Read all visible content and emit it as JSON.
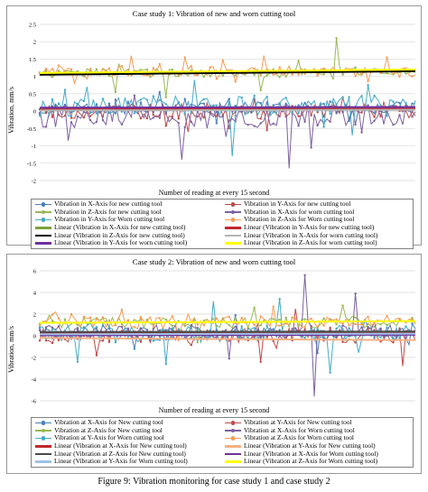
{
  "caption": "Figure 9: Vibration monitoring for case study 1 and case study 2",
  "chart_data": [
    {
      "type": "line",
      "title": "Case study 1: Vibration of new and worn cutting tool",
      "xlabel": "Number of reading at every 15 second",
      "ylabel": "Vibration, mm/s",
      "ylim": [
        -2,
        2.5
      ],
      "yticks": [
        "2.5",
        "2",
        "1.5",
        "1",
        "0.5",
        "0",
        "-0.5",
        "-1",
        "-1.5",
        "-2"
      ],
      "grid": "horizontal",
      "legend_position": "bottom",
      "n_points": 120,
      "series": [
        {
          "name": "Vibration in X-Axis for new cutting tool",
          "color": "#4a7ebb",
          "kind": "data",
          "center": 0.1,
          "spread": 0.18,
          "spike_up": [
            [
              38,
              0.55
            ]
          ],
          "spike_down": [
            [
              56,
              -0.35
            ]
          ]
        },
        {
          "name": "Vibration in Y-Axis for new cutting tool",
          "color": "#be4b48",
          "kind": "data",
          "center": 0.0,
          "spread": 0.22,
          "spike_up": [
            [
              96,
              0.4
            ]
          ],
          "spike_down": [
            [
              47,
              -0.6
            ],
            [
              72,
              -0.55
            ]
          ]
        },
        {
          "name": "Vibration in Z-Axis for new cutting tool",
          "color": "#98b954",
          "kind": "data",
          "center": 1.1,
          "spread": 0.12,
          "spike_up": [
            [
              94,
              2.1
            ],
            [
              82,
              1.45
            ]
          ],
          "spike_down": [
            [
              24,
              0.55
            ],
            [
              40,
              0.4
            ],
            [
              70,
              0.6
            ]
          ]
        },
        {
          "name": "Vibration in X-Axis for worn cutting tool",
          "color": "#7d60a0",
          "kind": "data",
          "center": -0.15,
          "spread": 0.35,
          "spike_up": [
            [
              30,
              0.45
            ]
          ],
          "spike_down": [
            [
              9,
              -0.85
            ],
            [
              45,
              -1.4
            ],
            [
              79,
              -1.65
            ],
            [
              86,
              -1.05
            ]
          ]
        },
        {
          "name": "Vibration in Y-Axis for Worn cutting tool",
          "color": "#46aac5",
          "kind": "data",
          "center": 0.15,
          "spread": 0.3,
          "spike_up": [
            [
              15,
              0.7
            ],
            [
              49,
              0.9
            ],
            [
              104,
              0.75
            ]
          ],
          "spike_down": [
            [
              61,
              -1.3
            ],
            [
              99,
              -0.7
            ]
          ]
        },
        {
          "name": "Vibration in Z-Axis for Worn cutting tool",
          "color": "#f59d56",
          "kind": "data",
          "center": 1.15,
          "spread": 0.15,
          "spike_up": [
            [
              29,
              1.6
            ],
            [
              46,
              1.55
            ],
            [
              71,
              1.6
            ],
            [
              110,
              1.55
            ]
          ],
          "spike_down": [
            [
              11,
              0.8
            ],
            [
              62,
              0.85
            ]
          ]
        },
        {
          "name": "Linear (Vibration in X-Axis for new cutting tool)",
          "color": "#7aa23a",
          "kind": "trend",
          "y0": 0.08,
          "y1": 0.1
        },
        {
          "name": "Linear (Vibration in Y-Axis for new cutting tool)",
          "color": "#c0282d",
          "kind": "trend",
          "y0": 0.05,
          "y1": 0.07
        },
        {
          "name": "Linear (Vibration in Z-Axis for new cutting tool)",
          "color": "#000000",
          "kind": "trend",
          "y0": 1.05,
          "y1": 1.15
        },
        {
          "name": "Linear (Vibration in X-Axis for worn cutting tool)",
          "color": "#b5b5b5",
          "kind": "trend",
          "y0": 0.02,
          "y1": 0.04
        },
        {
          "name": "Linear (Vibration in Y-Axis for worn cutting tool)",
          "color": "#7030a0",
          "kind": "trend",
          "y0": 0.1,
          "y1": 0.12
        },
        {
          "name": "Linear (Vibration in Z-Axis for worn cutting tool)",
          "color": "#ffff00",
          "kind": "trend",
          "y0": 1.1,
          "y1": 1.2
        }
      ]
    },
    {
      "type": "line",
      "title": "Case study 2: Vibration of new and worn cutting tool",
      "xlabel": "Number of reading at every 15 second",
      "ylabel": "Vibration, mm/s",
      "ylim": [
        -6,
        6
      ],
      "yticks": [
        "6",
        "4",
        "2",
        "0",
        "-2",
        "-4",
        "-6"
      ],
      "grid": "horizontal",
      "legend_position": "bottom",
      "n_points": 120,
      "series": [
        {
          "name": "Vibration at X-Axis for New cutting tool",
          "color": "#4a7ebb",
          "kind": "data",
          "center": 0.2,
          "spread": 0.6,
          "spike_up": [
            [
              62,
              1.9
            ],
            [
              103,
              1.5
            ]
          ],
          "spike_down": [
            [
              30,
              -1.2
            ],
            [
              88,
              -1.6
            ]
          ]
        },
        {
          "name": "Vibration at Y-Axis for New cutting tool",
          "color": "#be4b48",
          "kind": "data",
          "center": 0.0,
          "spread": 0.7,
          "spike_up": [
            [
              81,
              2.5
            ]
          ],
          "spike_down": [
            [
              18,
              -1.8
            ],
            [
              70,
              -2.4
            ],
            [
              115,
              -2.8
            ]
          ]
        },
        {
          "name": "Vibration at Z-Axis for New cutting tool",
          "color": "#98b954",
          "kind": "data",
          "center": 1.2,
          "spread": 0.5,
          "spike_up": [
            [
              68,
              2.6
            ],
            [
              96,
              2.8
            ]
          ],
          "spike_down": [
            [
              50,
              -0.6
            ]
          ]
        },
        {
          "name": "Vibration at X-Axis for Worn cutting tool",
          "color": "#7d60a0",
          "kind": "data",
          "center": 0.3,
          "spread": 0.7,
          "spike_up": [
            [
              84,
              5.6
            ],
            [
              100,
              3.9
            ]
          ],
          "spike_down": [
            [
              87,
              -5.6
            ],
            [
              60,
              -2.1
            ]
          ]
        },
        {
          "name": "Vibration at Y-Axis for Worn cutting tool",
          "color": "#46aac5",
          "kind": "data",
          "center": 0.2,
          "spread": 0.8,
          "spike_up": [
            [
              55,
              3.2
            ],
            [
              76,
              3.4
            ]
          ],
          "spike_down": [
            [
              12,
              -2.4
            ],
            [
              40,
              -2.6
            ],
            [
              92,
              -3.4
            ]
          ]
        },
        {
          "name": "Vibration at Z-Axis for Worn cutting tool",
          "color": "#f59d56",
          "kind": "data",
          "center": 1.3,
          "spread": 0.5,
          "spike_up": [
            [
              26,
              2.4
            ],
            [
              74,
              2.7
            ]
          ],
          "spike_down": [
            [
              44,
              -0.4
            ]
          ]
        },
        {
          "name": "Linear (Vibration at X-Axis for New cutting tool)",
          "color": "#c0282d",
          "kind": "trend",
          "y0": 0.25,
          "y1": 0.3
        },
        {
          "name": "Linear (Vibration at Y-Axis for New cutting tool)",
          "color": "#f4b183",
          "kind": "trend",
          "y0": -0.2,
          "y1": -0.4
        },
        {
          "name": "Linear (Vibration at Z-Axis for New cutting tool)",
          "color": "#4a4a4a",
          "kind": "trend",
          "y0": 0.35,
          "y1": 0.4
        },
        {
          "name": "Linear (Vibration at X-Axis for Worn cutting tool)",
          "color": "#7030a0",
          "kind": "trend",
          "y0": 0.05,
          "y1": 0.1
        },
        {
          "name": "Linear (Vibration at Y-Axis for Worn cutting tool)",
          "color": "#9dc3e6",
          "kind": "trend",
          "y0": 0.15,
          "y1": 0.2
        },
        {
          "name": "Linear (Vibration at Z-Axis for Worn cutting tool)",
          "color": "#ffff00",
          "kind": "trend",
          "y0": 1.2,
          "y1": 1.35
        }
      ]
    }
  ]
}
